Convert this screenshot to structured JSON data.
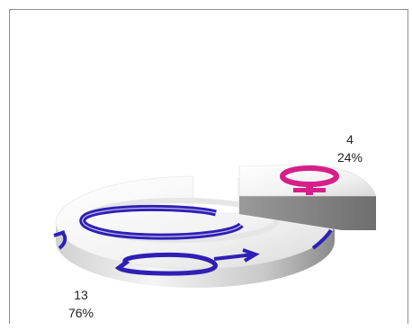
{
  "chart_data": {
    "type": "pie",
    "style": "3d-ring",
    "slices": [
      {
        "value": 13,
        "percent": "76%",
        "symbol": "male-symbol",
        "color": "#2f1fb5"
      },
      {
        "value": 4,
        "percent": "24%",
        "symbol": "female-symbol",
        "color": "#d61f8a"
      }
    ],
    "title": "",
    "legend": "none"
  }
}
